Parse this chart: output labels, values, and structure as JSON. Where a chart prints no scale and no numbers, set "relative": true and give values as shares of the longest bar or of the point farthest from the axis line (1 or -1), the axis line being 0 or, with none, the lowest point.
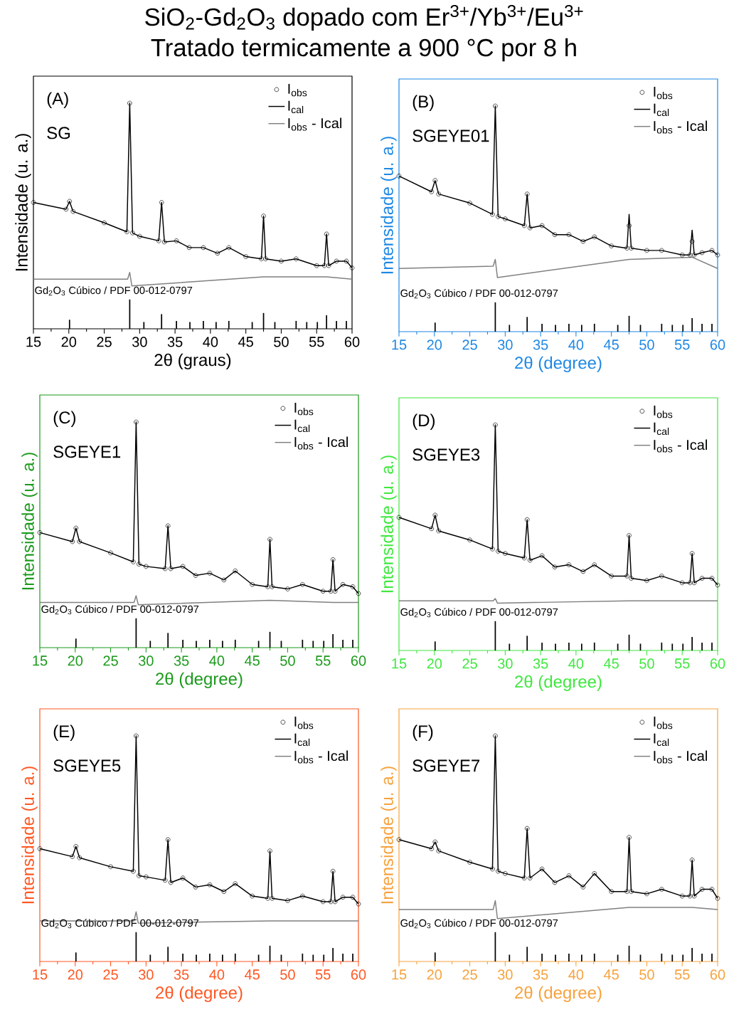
{
  "chart_data": [
    {
      "type": "line",
      "title": "SiO$_{2}$-Gd$_{2}$O$_{3}$ dopado com Er$^{3+}$/Yb$^{3+}$/Eu$^{3+}$",
      "subtitle": "Tratado termicamente a 900 °C por 8 h",
      "xlabel": "2θ (graus)",
      "ylabel": "Intensidade (u. a.)",
      "relative": true,
      "xlim": [
        15,
        60
      ],
      "xticks": [
        15,
        20,
        25,
        30,
        35,
        40,
        45,
        50,
        55,
        60
      ],
      "legend": "top right",
      "annotations": [
        "(A)",
        "SG",
        "Gd$_{2}$O$_{3}$ Cúbico / PDF 00-012-0797"
      ],
      "x": [
        15,
        19.6,
        20.1,
        20.6,
        25,
        28.2,
        28.6,
        29,
        30,
        32.7,
        33.1,
        33.5,
        35.2,
        37,
        39,
        41,
        42.6,
        45,
        47.2,
        47.5,
        47.8,
        50,
        52.1,
        55,
        56.1,
        56.4,
        56.7,
        57.8,
        59.2,
        60
      ],
      "series": [
        {
          "name": "I$_{obs}$",
          "type": "scatter",
          "marker": "circle",
          "color": "#000000",
          "values": [
            0.56,
            0.53,
            0.565,
            0.52,
            0.47,
            0.43,
            1,
            0.425,
            0.41,
            0.39,
            0.56,
            0.385,
            0.39,
            0.36,
            0.36,
            0.335,
            0.36,
            0.32,
            0.31,
            0.5,
            0.31,
            0.3,
            0.31,
            0.28,
            0.28,
            0.42,
            0.28,
            0.3,
            0.3,
            0.27
          ]
        },
        {
          "name": "I$_{cal}$",
          "color": "#000000",
          "values": [
            0.56,
            0.53,
            0.565,
            0.52,
            0.47,
            0.43,
            1,
            0.425,
            0.41,
            0.39,
            0.56,
            0.385,
            0.39,
            0.36,
            0.36,
            0.335,
            0.36,
            0.32,
            0.31,
            0.5,
            0.31,
            0.3,
            0.31,
            0.28,
            0.28,
            0.42,
            0.28,
            0.3,
            0.3,
            0.27
          ]
        },
        {
          "name": "I$_{obs}$ - Ical",
          "color": "#808080",
          "x": [
            15,
            28.3,
            28.6,
            28.9,
            47.5,
            56.4,
            60
          ],
          "values": [
            0.22,
            0.22,
            0.25,
            0.19,
            0.23,
            0.23,
            0.22
          ]
        },
        {
          "type": "bar",
          "color": "#000000",
          "x": [
            20.1,
            28.6,
            30.6,
            33.1,
            35.2,
            37.1,
            39,
            40.8,
            42.6,
            45.9,
            47.5,
            49.1,
            52.1,
            53.6,
            55.1,
            56.4,
            57.8,
            59.2
          ],
          "values": [
            0.04,
            0.13,
            0.03,
            0.065,
            0.035,
            0.03,
            0.035,
            0.03,
            0.035,
            0.03,
            0.07,
            0.03,
            0.035,
            0.03,
            0.03,
            0.06,
            0.035,
            0.035
          ]
        }
      ]
    },
    {
      "type": "line",
      "xlabel": "2θ (degree)",
      "ylabel": "Intensidade (u. a.)",
      "relative": true,
      "xlim": [
        15,
        60
      ],
      "xticks": [
        15,
        20,
        25,
        30,
        35,
        40,
        45,
        50,
        55,
        60
      ],
      "legend": "top right",
      "annotations": [
        "(B)",
        "SGEYE01",
        "Gd$_{2}$O$_{3}$ Cúbico / PDF 00-012-0797"
      ],
      "x": [
        15,
        19.6,
        20.1,
        20.6,
        25,
        28.2,
        28.6,
        29,
        30,
        32.7,
        33.1,
        33.5,
        35.2,
        37,
        39,
        41,
        42.6,
        45,
        47.2,
        47.5,
        47.8,
        50,
        52.1,
        55,
        56.1,
        56.4,
        56.7,
        57.8,
        59.2,
        60
      ],
      "series": [
        {
          "name": "I$_{obs}$",
          "type": "scatter",
          "marker": "circle",
          "color": "#000000",
          "values": [
            0.69,
            0.62,
            0.67,
            0.61,
            0.57,
            0.52,
            1,
            0.51,
            0.5,
            0.47,
            0.61,
            0.46,
            0.47,
            0.43,
            0.43,
            0.4,
            0.42,
            0.38,
            0.37,
            0.47,
            0.37,
            0.36,
            0.36,
            0.34,
            0.34,
            0.4,
            0.34,
            0.35,
            0.36,
            0.34
          ]
        },
        {
          "name": "I$_{cal}$",
          "color": "#000000",
          "values": [
            0.69,
            0.62,
            0.67,
            0.61,
            0.57,
            0.52,
            1,
            0.51,
            0.5,
            0.47,
            0.61,
            0.46,
            0.47,
            0.43,
            0.43,
            0.4,
            0.42,
            0.38,
            0.37,
            0.52,
            0.37,
            0.36,
            0.36,
            0.34,
            0.34,
            0.45,
            0.34,
            0.35,
            0.36,
            0.34
          ]
        },
        {
          "name": "I$_{obs}$ - Ical",
          "color": "#808080",
          "x": [
            15,
            28.3,
            28.6,
            28.9,
            47.5,
            56.4,
            60
          ],
          "values": [
            0.28,
            0.29,
            0.32,
            0.24,
            0.32,
            0.33,
            0.28
          ]
        },
        {
          "type": "bar",
          "color": "#000000",
          "x": [
            20.1,
            28.6,
            30.6,
            33.1,
            35.2,
            37.1,
            39,
            40.8,
            42.6,
            45.9,
            47.5,
            49.1,
            52.1,
            53.6,
            55.1,
            56.4,
            57.8,
            59.2
          ],
          "values": [
            0.04,
            0.13,
            0.03,
            0.065,
            0.035,
            0.03,
            0.035,
            0.03,
            0.035,
            0.03,
            0.07,
            0.03,
            0.035,
            0.03,
            0.03,
            0.06,
            0.035,
            0.035
          ]
        }
      ]
    },
    {
      "type": "line",
      "xlabel": "2θ (degree)",
      "ylabel": "Intensidade (u. a.)",
      "relative": true,
      "xlim": [
        15,
        60
      ],
      "xticks": [
        15,
        20,
        25,
        30,
        35,
        40,
        45,
        50,
        55,
        60
      ],
      "legend": "top right",
      "annotations": [
        "(C)",
        "SGEYE1",
        "Gd$_{2}$O$_{3}$ Cúbico / PDF 00-012-0797"
      ],
      "x": [
        15,
        19.6,
        20.1,
        20.6,
        25,
        28.2,
        28.6,
        29,
        30,
        32.7,
        33.1,
        33.5,
        35.2,
        37,
        39,
        41,
        42.6,
        45,
        47.2,
        47.5,
        47.8,
        50,
        52.1,
        55,
        56.1,
        56.4,
        56.7,
        57.8,
        59.2,
        60
      ],
      "series": [
        {
          "name": "I$_{obs}$",
          "type": "scatter",
          "marker": "circle",
          "color": "#000000",
          "values": [
            0.51,
            0.47,
            0.53,
            0.47,
            0.42,
            0.38,
            1,
            0.37,
            0.36,
            0.35,
            0.54,
            0.35,
            0.36,
            0.32,
            0.33,
            0.3,
            0.34,
            0.28,
            0.27,
            0.48,
            0.27,
            0.26,
            0.28,
            0.25,
            0.25,
            0.39,
            0.25,
            0.28,
            0.27,
            0.24
          ]
        },
        {
          "name": "I$_{cal}$",
          "color": "#000000",
          "values": [
            0.51,
            0.47,
            0.53,
            0.47,
            0.42,
            0.38,
            1,
            0.37,
            0.36,
            0.35,
            0.54,
            0.35,
            0.36,
            0.32,
            0.33,
            0.3,
            0.34,
            0.28,
            0.27,
            0.48,
            0.27,
            0.26,
            0.28,
            0.25,
            0.25,
            0.39,
            0.25,
            0.28,
            0.27,
            0.24
          ]
        },
        {
          "name": "I$_{obs}$ - Ical",
          "color": "#808080",
          "x": [
            15,
            28.3,
            28.6,
            28.9,
            47.5,
            56.4,
            60
          ],
          "values": [
            0.2,
            0.2,
            0.23,
            0.19,
            0.21,
            0.2,
            0.2
          ]
        },
        {
          "type": "bar",
          "color": "#000000",
          "x": [
            20.1,
            28.6,
            30.6,
            33.1,
            35.2,
            37.1,
            39,
            40.8,
            42.6,
            45.9,
            47.5,
            49.1,
            52.1,
            53.6,
            55.1,
            56.4,
            57.8,
            59.2
          ],
          "values": [
            0.04,
            0.13,
            0.03,
            0.065,
            0.035,
            0.03,
            0.035,
            0.03,
            0.035,
            0.03,
            0.07,
            0.03,
            0.035,
            0.03,
            0.03,
            0.06,
            0.035,
            0.035
          ]
        }
      ]
    },
    {
      "type": "line",
      "xlabel": "2θ (degree)",
      "ylabel": "Intensidade (u. a.)",
      "relative": true,
      "xlim": [
        15,
        60
      ],
      "xticks": [
        15,
        20,
        25,
        30,
        35,
        40,
        45,
        50,
        55,
        60
      ],
      "legend": "top right",
      "annotations": [
        "(D)",
        "SGEYE3",
        "Gd$_{2}$O$_{3}$ Cúbico / PDF 00-012-0797"
      ],
      "x": [
        15,
        19.6,
        20.1,
        20.6,
        25,
        28.2,
        28.6,
        29,
        30,
        32.7,
        33.1,
        33.5,
        35.2,
        37,
        39,
        41,
        42.6,
        45,
        47.2,
        47.5,
        47.8,
        50,
        52.1,
        55,
        56.1,
        56.4,
        56.7,
        57.8,
        59.2,
        60
      ],
      "series": [
        {
          "name": "I$_{obs}$",
          "type": "scatter",
          "marker": "circle",
          "color": "#000000",
          "values": [
            0.59,
            0.54,
            0.6,
            0.53,
            0.49,
            0.45,
            1,
            0.44,
            0.43,
            0.41,
            0.58,
            0.4,
            0.42,
            0.37,
            0.38,
            0.35,
            0.38,
            0.33,
            0.33,
            0.51,
            0.32,
            0.31,
            0.33,
            0.3,
            0.3,
            0.43,
            0.3,
            0.32,
            0.32,
            0.29
          ]
        },
        {
          "name": "I$_{cal}$",
          "color": "#000000",
          "values": [
            0.59,
            0.54,
            0.6,
            0.53,
            0.49,
            0.45,
            1,
            0.44,
            0.43,
            0.41,
            0.58,
            0.4,
            0.42,
            0.37,
            0.38,
            0.35,
            0.38,
            0.33,
            0.33,
            0.51,
            0.32,
            0.31,
            0.33,
            0.3,
            0.3,
            0.43,
            0.3,
            0.32,
            0.32,
            0.29
          ]
        },
        {
          "name": "I$_{obs}$ - Ical",
          "color": "#808080",
          "x": [
            15,
            28.3,
            28.6,
            28.9,
            47.5,
            56.4,
            60
          ],
          "values": [
            0.22,
            0.22,
            0.23,
            0.21,
            0.22,
            0.22,
            0.22
          ]
        },
        {
          "type": "bar",
          "color": "#000000",
          "x": [
            20.1,
            28.6,
            30.6,
            33.1,
            35.2,
            37.1,
            39,
            40.8,
            42.6,
            45.9,
            47.5,
            49.1,
            52.1,
            53.6,
            55.1,
            56.4,
            57.8,
            59.2
          ],
          "values": [
            0.04,
            0.13,
            0.03,
            0.065,
            0.035,
            0.03,
            0.035,
            0.03,
            0.035,
            0.03,
            0.07,
            0.03,
            0.035,
            0.03,
            0.03,
            0.06,
            0.035,
            0.035
          ]
        }
      ]
    },
    {
      "type": "line",
      "xlabel": "2θ (degree)",
      "ylabel": "Intensidade (u. a.)",
      "relative": true,
      "xlim": [
        15,
        60
      ],
      "xticks": [
        15,
        20,
        25,
        30,
        35,
        40,
        45,
        50,
        55,
        60
      ],
      "legend": "top right",
      "annotations": [
        "(E)",
        "SGEYE5",
        "Gd$_{2}$O$_{3}$ Cúbico / PDF 00-012-0797"
      ],
      "x": [
        15,
        19.6,
        20.1,
        20.6,
        25,
        28.2,
        28.6,
        29,
        30,
        32.7,
        33.1,
        33.5,
        35.2,
        37,
        39,
        41,
        42.6,
        45,
        47.2,
        47.5,
        47.8,
        50,
        52.1,
        55,
        56.1,
        56.4,
        56.7,
        57.8,
        59.2,
        60
      ],
      "series": [
        {
          "name": "I$_{obs}$",
          "type": "scatter",
          "marker": "circle",
          "color": "#000000",
          "values": [
            0.5,
            0.465,
            0.51,
            0.46,
            0.42,
            0.4,
            1,
            0.38,
            0.375,
            0.36,
            0.54,
            0.35,
            0.37,
            0.33,
            0.34,
            0.31,
            0.345,
            0.29,
            0.28,
            0.49,
            0.28,
            0.27,
            0.29,
            0.265,
            0.265,
            0.4,
            0.265,
            0.285,
            0.285,
            0.255
          ]
        },
        {
          "name": "I$_{cal}$",
          "color": "#000000",
          "values": [
            0.5,
            0.465,
            0.51,
            0.46,
            0.42,
            0.4,
            1,
            0.38,
            0.375,
            0.36,
            0.54,
            0.35,
            0.37,
            0.33,
            0.34,
            0.31,
            0.345,
            0.29,
            0.28,
            0.49,
            0.28,
            0.27,
            0.29,
            0.265,
            0.265,
            0.4,
            0.265,
            0.285,
            0.285,
            0.255
          ]
        },
        {
          "name": "I$_{obs}$ - Ical",
          "color": "#808080",
          "x": [
            15,
            28.3,
            28.6,
            28.9,
            47.5,
            56.4,
            60
          ],
          "values": [
            0.18,
            0.18,
            0.22,
            0.17,
            0.18,
            0.18,
            0.18
          ]
        },
        {
          "type": "bar",
          "color": "#000000",
          "x": [
            20.1,
            28.6,
            30.6,
            33.1,
            35.2,
            37.1,
            39,
            40.8,
            42.6,
            45.9,
            47.5,
            49.1,
            52.1,
            53.6,
            55.1,
            56.4,
            57.8,
            59.2
          ],
          "values": [
            0.04,
            0.13,
            0.03,
            0.065,
            0.035,
            0.03,
            0.035,
            0.03,
            0.035,
            0.03,
            0.07,
            0.03,
            0.035,
            0.03,
            0.03,
            0.06,
            0.035,
            0.035
          ]
        }
      ]
    },
    {
      "type": "line",
      "xlabel": "2θ (degree)",
      "ylabel": "Intensidade (u. a.)",
      "relative": true,
      "xlim": [
        15,
        60
      ],
      "xticks": [
        15,
        20,
        25,
        30,
        35,
        40,
        45,
        50,
        55,
        60
      ],
      "legend": "top right",
      "annotations": [
        "(F)",
        "SGEYE7",
        "Gd$_{2}$O$_{3}$ Cúbico / PDF 00-012-0797"
      ],
      "x": [
        15,
        19.6,
        20.1,
        20.6,
        25,
        28.2,
        28.6,
        29,
        30,
        32.7,
        33.1,
        33.5,
        35.2,
        37,
        39,
        41,
        42.6,
        45,
        47.2,
        47.5,
        47.8,
        50,
        52.1,
        55,
        56.1,
        56.4,
        56.7,
        57.8,
        59.2,
        60
      ],
      "series": [
        {
          "name": "I$_{obs}$",
          "type": "scatter",
          "marker": "circle",
          "color": "#000000",
          "values": [
            0.54,
            0.5,
            0.53,
            0.49,
            0.44,
            0.41,
            1,
            0.4,
            0.39,
            0.37,
            0.59,
            0.37,
            0.41,
            0.35,
            0.38,
            0.33,
            0.39,
            0.31,
            0.31,
            0.55,
            0.31,
            0.3,
            0.32,
            0.29,
            0.29,
            0.45,
            0.29,
            0.32,
            0.32,
            0.28
          ]
        },
        {
          "name": "I$_{cal}$",
          "color": "#000000",
          "values": [
            0.54,
            0.5,
            0.53,
            0.49,
            0.44,
            0.41,
            1,
            0.4,
            0.39,
            0.37,
            0.59,
            0.37,
            0.41,
            0.35,
            0.38,
            0.33,
            0.39,
            0.31,
            0.31,
            0.55,
            0.31,
            0.3,
            0.32,
            0.29,
            0.29,
            0.45,
            0.29,
            0.32,
            0.32,
            0.28
          ]
        },
        {
          "name": "I$_{obs}$ - Ical",
          "color": "#808080",
          "x": [
            15,
            28.3,
            28.6,
            28.9,
            47.5,
            56.4,
            60
          ],
          "values": [
            0.23,
            0.23,
            0.27,
            0.19,
            0.24,
            0.24,
            0.23
          ]
        },
        {
          "type": "bar",
          "color": "#000000",
          "x": [
            20.1,
            28.6,
            30.6,
            33.1,
            35.2,
            37.1,
            39,
            40.8,
            42.6,
            45.9,
            47.5,
            49.1,
            52.1,
            53.6,
            55.1,
            56.4,
            57.8,
            59.2
          ],
          "values": [
            0.04,
            0.13,
            0.03,
            0.065,
            0.035,
            0.03,
            0.035,
            0.03,
            0.035,
            0.03,
            0.07,
            0.03,
            0.035,
            0.03,
            0.03,
            0.06,
            0.035,
            0.035
          ]
        }
      ]
    }
  ]
}
